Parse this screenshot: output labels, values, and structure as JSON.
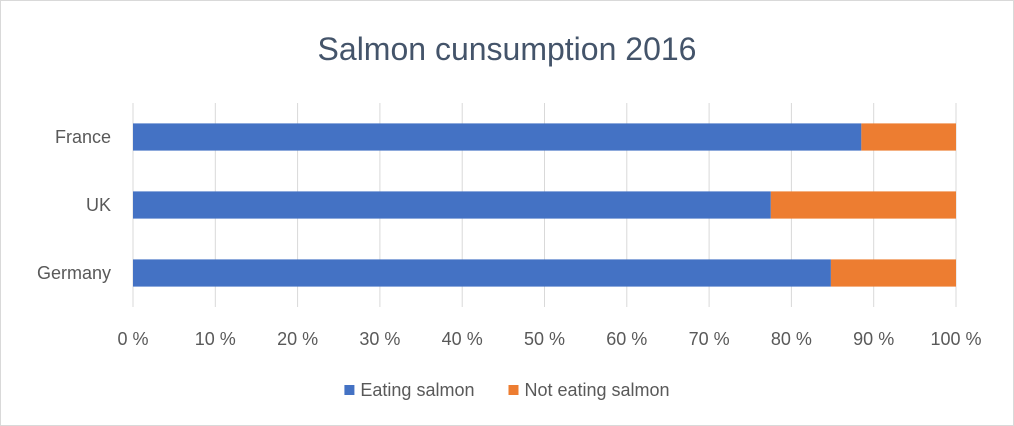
{
  "chart_data": {
    "type": "bar",
    "orientation": "horizontal",
    "stacked": "percent",
    "title": "Salmon cunsumption 2016",
    "categories": [
      "France",
      "UK",
      "Germany"
    ],
    "series": [
      {
        "name": "Eating salmon",
        "color": "#4472c4",
        "values": [
          88.5,
          77.5,
          84.8
        ]
      },
      {
        "name": "Not eating salmon",
        "color": "#ed7d31",
        "values": [
          11.5,
          22.5,
          15.2
        ]
      }
    ],
    "x_ticks": [
      "0 %",
      "10 %",
      "20 %",
      "30 %",
      "40 %",
      "50 %",
      "60 %",
      "70 %",
      "80 %",
      "90 %",
      "100 %"
    ],
    "xlim": [
      0,
      100
    ],
    "grid": true,
    "legend_position": "bottom"
  }
}
